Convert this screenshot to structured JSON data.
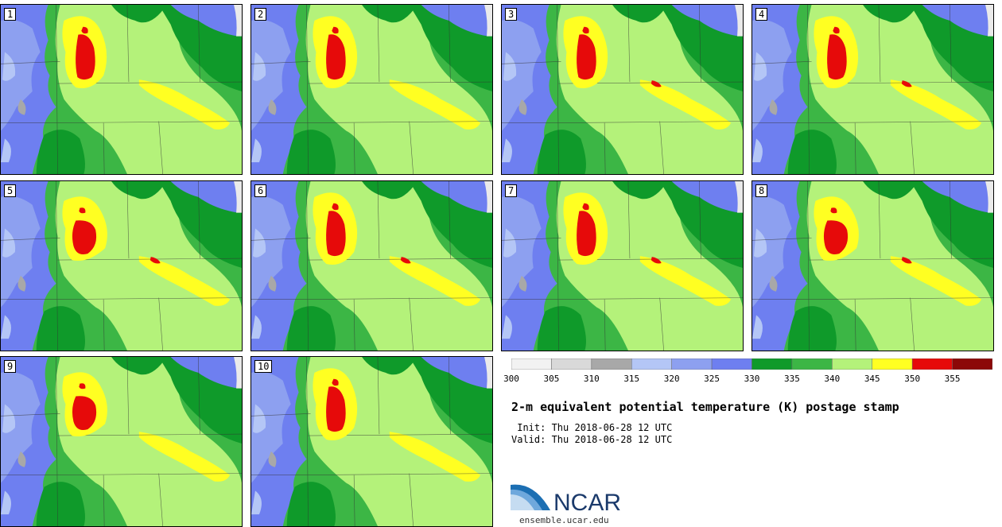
{
  "panels": [
    "1",
    "2",
    "3",
    "4",
    "5",
    "6",
    "7",
    "8",
    "9",
    "10"
  ],
  "colorbar": {
    "ticks": [
      "300",
      "305",
      "310",
      "315",
      "320",
      "325",
      "330",
      "335",
      "340",
      "345",
      "350",
      "355"
    ],
    "colors": [
      "#f2f2f2",
      "#d9d9d9",
      "#a8a8a8",
      "#b4c6f6",
      "#8da0f0",
      "#6e7ff0",
      "#0f9a2a",
      "#3cb645",
      "#b4f27a",
      "#ffff22",
      "#e60a0a",
      "#8c0808"
    ]
  },
  "map_colors": {
    "green_dark": "#0f9a2a",
    "green_mid": "#3cb645",
    "green_light": "#b4f27a",
    "yellow": "#ffff22",
    "red": "#e60a0a",
    "blue_pale": "#b4c6f6",
    "blue_light": "#8da0f0",
    "blue": "#6e7ff0",
    "gray": "#a8a8a8"
  },
  "title": "2-m equivalent potential temperature (K) postage stamp",
  "init": " Init: Thu 2018-06-28 12 UTC",
  "valid": "Valid: Thu 2018-06-28 12 UTC",
  "logo": {
    "text": "NCAR",
    "url": "ensemble.ucar.edu"
  }
}
